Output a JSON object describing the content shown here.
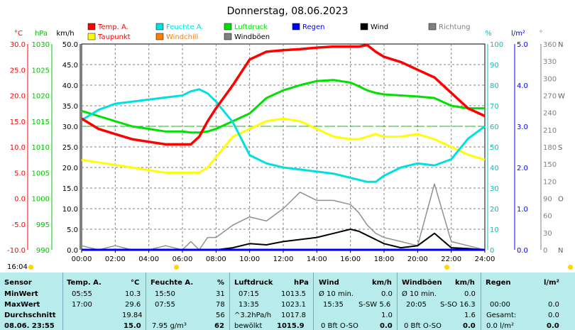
{
  "chart_data": {
    "type": "line",
    "title": "Donnerstag, 08.06.2023",
    "x_ticks": [
      "00:00",
      "02:00",
      "04:00",
      "06:00",
      "08:00",
      "10:00",
      "12:00",
      "14:00",
      "16:00",
      "18:00",
      "20:00",
      "22:00",
      "24:00"
    ],
    "x_range_hours": [
      0,
      24
    ],
    "axes": {
      "temp": {
        "label": "°C",
        "ticks": [
          "30.0",
          "25.0",
          "20.0",
          "15.0",
          "10.0",
          "5.0",
          "0.0",
          "-5.0",
          "-10.0"
        ],
        "range": [
          -10,
          30
        ],
        "color": "#ff0000"
      },
      "pressure": {
        "label": "hPa",
        "ticks": [
          "1030",
          "1025",
          "1020",
          "1015",
          "1010",
          "1005",
          "1000",
          "995",
          "990"
        ],
        "range": [
          990,
          1030
        ],
        "color": "#00c000"
      },
      "wind": {
        "label": "km/h",
        "ticks": [
          "50.0",
          "45.0",
          "40.0",
          "35.0",
          "30.0",
          "25.0",
          "20.0",
          "15.0",
          "10.0",
          "5.0",
          "0.0"
        ],
        "range": [
          0,
          50
        ],
        "color": "#000000"
      },
      "humidity": {
        "label": "%",
        "ticks": [
          "100",
          "90",
          "80",
          "70",
          "60",
          "50",
          "40",
          "30",
          "20",
          "10",
          "0"
        ],
        "range": [
          0,
          100
        ],
        "color": "#00c0c0"
      },
      "rain": {
        "label": "l/m²",
        "ticks": [
          "5.0",
          "4.0",
          "3.0",
          "2.0",
          "1.0",
          "0.0"
        ],
        "range": [
          0,
          5
        ],
        "color": "#0000ff"
      },
      "direction": {
        "label": "°",
        "ticks": [
          "360",
          "330",
          "300",
          "270",
          "240",
          "210",
          "180",
          "150",
          "120",
          "90",
          "60",
          "30",
          "0"
        ],
        "range": [
          0,
          360
        ],
        "color": "#808080"
      },
      "compass": [
        "N",
        "",
        "",
        "W",
        "",
        "",
        "S",
        "",
        "",
        "O",
        "",
        "",
        "N"
      ]
    },
    "legend": [
      {
        "name": "Temp. A.",
        "color": "#ff0000"
      },
      {
        "name": "Feuchte A.",
        "color": "#00e0e0"
      },
      {
        "name": "Luftdruck",
        "color": "#00e000"
      },
      {
        "name": "Regen",
        "color": "#0000ff"
      },
      {
        "name": "Wind",
        "color": "#000000"
      },
      {
        "name": "Richtung",
        "color": "#808080"
      },
      {
        "name": "Taupunkt",
        "color": "#ffff00"
      },
      {
        "name": "Windchill",
        "color": "#ff8000"
      },
      {
        "name": "Windböen",
        "color": "#808080"
      }
    ],
    "series": [
      {
        "name": "Temp. A.",
        "axis": "temp",
        "x": [
          0,
          1,
          2,
          3,
          4,
          5,
          6,
          6.5,
          7,
          7.5,
          8,
          9,
          10,
          11,
          12,
          13,
          14,
          15,
          16,
          16.5,
          17,
          17.5,
          18,
          19,
          20,
          21,
          22,
          23,
          24
        ],
        "y": [
          15.5,
          13.5,
          12.5,
          11.5,
          11.0,
          10.5,
          10.5,
          10.5,
          12,
          15,
          17.5,
          22,
          27.0,
          28.5,
          28.8,
          29.0,
          29.3,
          29.5,
          29.5,
          29.5,
          29.8,
          28.5,
          27.5,
          26.5,
          25.0,
          23.5,
          20.5,
          17.5,
          16.0
        ]
      },
      {
        "name": "Feuchte A.",
        "axis": "humidity",
        "x": [
          0,
          1,
          2,
          3,
          4,
          5,
          6,
          6.5,
          7,
          7.5,
          8,
          9,
          10,
          11,
          12,
          13,
          14,
          15,
          16,
          16.5,
          17,
          17.5,
          18,
          19,
          20,
          21,
          22,
          23,
          24
        ],
        "y": [
          63,
          68,
          71,
          72,
          73,
          74,
          75,
          77,
          78,
          76,
          72,
          62,
          46,
          42,
          40,
          39,
          38,
          37,
          35,
          34,
          33,
          33,
          36,
          40,
          42,
          41,
          44,
          54,
          60
        ]
      },
      {
        "name": "Luftdruck",
        "axis": "pressure",
        "x": [
          0,
          1,
          2,
          3,
          4,
          5,
          6,
          6.5,
          7,
          7.5,
          8,
          9,
          10,
          11,
          12,
          13,
          14,
          15,
          16,
          16.5,
          17,
          17.5,
          18,
          19,
          20,
          21,
          22,
          23,
          24
        ],
        "y": [
          1017,
          1016,
          1015,
          1014,
          1013.5,
          1013,
          1013,
          1012.8,
          1012.8,
          1013.0,
          1013.5,
          1015,
          1016.5,
          1019.5,
          1021.0,
          1022.0,
          1022.8,
          1023.0,
          1022.5,
          1021.8,
          1021.0,
          1020.5,
          1020.2,
          1020.0,
          1019.8,
          1019.5,
          1018.0,
          1017.5,
          1017.5
        ]
      },
      {
        "name": "Taupunkt",
        "axis": "temp",
        "x": [
          0,
          1,
          2,
          3,
          4,
          5,
          6,
          6.5,
          7,
          7.5,
          8,
          9,
          10,
          11,
          12,
          13,
          14,
          15,
          16,
          16.5,
          17,
          17.5,
          18,
          19,
          20,
          21,
          22,
          23,
          24
        ],
        "y": [
          7.5,
          7.0,
          6.5,
          6.0,
          5.5,
          5.0,
          5.0,
          5.0,
          5.0,
          6.0,
          8.0,
          12,
          13.5,
          15.0,
          15.5,
          15.0,
          13.5,
          12.0,
          11.5,
          11.5,
          12.0,
          12.5,
          12.0,
          12.0,
          12.5,
          11.5,
          10.0,
          8.5,
          7.5
        ]
      },
      {
        "name": "Wind",
        "axis": "wind",
        "x": [
          0,
          1,
          2,
          3,
          4,
          5,
          6,
          6.5,
          7,
          7.5,
          8,
          9,
          10,
          11,
          12,
          13,
          14,
          15,
          16,
          16.5,
          17,
          17.5,
          18,
          19,
          20,
          21,
          22,
          23,
          24
        ],
        "y": [
          0,
          0,
          0,
          0,
          0,
          0,
          0,
          0,
          0,
          0,
          0,
          0.5,
          1.5,
          1.2,
          2.0,
          2.5,
          3.0,
          4.0,
          5.0,
          4.5,
          3.5,
          2.5,
          1.5,
          0.5,
          1.0,
          4.0,
          0.5,
          0.3,
          0
        ]
      },
      {
        "name": "Windböen",
        "axis": "wind",
        "x": [
          0,
          1,
          2,
          3,
          4,
          5,
          6,
          6.5,
          7,
          7.5,
          8,
          9,
          10,
          11,
          12,
          13,
          14,
          15,
          16,
          16.5,
          17,
          17.5,
          18,
          19,
          20,
          21,
          22,
          23,
          24
        ],
        "y": [
          1,
          0,
          1,
          0,
          0,
          1,
          0,
          2,
          0,
          3,
          3,
          6,
          8,
          7,
          10,
          14,
          12,
          12,
          11,
          9,
          6,
          4,
          3,
          2,
          1,
          16,
          2,
          1,
          0
        ]
      },
      {
        "name": "Regen",
        "axis": "rain",
        "x": [
          0,
          24
        ],
        "y": [
          0,
          0
        ]
      }
    ]
  },
  "timebar": {
    "time": "16:04"
  },
  "table": {
    "sensor": {
      "header": "Sensor",
      "rows": [
        "MinWert",
        "MaxWert",
        "Durchschnitt",
        "08.06. 23:55"
      ]
    },
    "temp": {
      "header": "Temp. A.",
      "unit": "°C",
      "rows": [
        [
          "05:55",
          "10.3"
        ],
        [
          "17:00",
          "29.6"
        ],
        [
          "",
          "19.84"
        ],
        [
          "",
          "15.0"
        ]
      ]
    },
    "humidity": {
      "header": "Feuchte A.",
      "unit": "%",
      "rows": [
        [
          "15:50",
          "31"
        ],
        [
          "07:55",
          "78"
        ],
        [
          "",
          "56"
        ],
        [
          "7.95 g/m³",
          "62"
        ]
      ]
    },
    "pressure": {
      "header": "Luftdruck",
      "unit": "hPa",
      "rows": [
        [
          "07:15",
          "1013.5"
        ],
        [
          "13:35",
          "1023.1"
        ],
        [
          "^3.2hPa/h",
          "1017.8"
        ],
        [
          "bewölkt",
          "1015.9"
        ]
      ]
    },
    "wind": {
      "header": "Wind",
      "unit": "km/h",
      "rows": [
        [
          "Ø 10 min.",
          "",
          "0.0"
        ],
        [
          "15:35",
          "S-SW 5.6",
          ""
        ],
        [
          "",
          "",
          "1.0"
        ],
        [
          "0 Bft O-SO",
          "",
          "0.0"
        ]
      ]
    },
    "gusts": {
      "header": "Windböen",
      "unit": "km/h",
      "rows": [
        [
          "Ø 10 min.",
          "",
          "0.0"
        ],
        [
          "20:05",
          "S-SO 16.3",
          ""
        ],
        [
          "",
          "",
          "1.6"
        ],
        [
          "0 Bft O-SO",
          "",
          "0.0"
        ]
      ]
    },
    "rain": {
      "header": "Regen",
      "unit": "l/m²",
      "rows": [
        [
          "",
          "",
          ""
        ],
        [
          "00:00",
          "",
          "0.0"
        ],
        [
          "Gesamt:",
          "",
          "0.0"
        ],
        [
          "0.0 l/m²",
          "",
          "0.0"
        ]
      ]
    }
  }
}
